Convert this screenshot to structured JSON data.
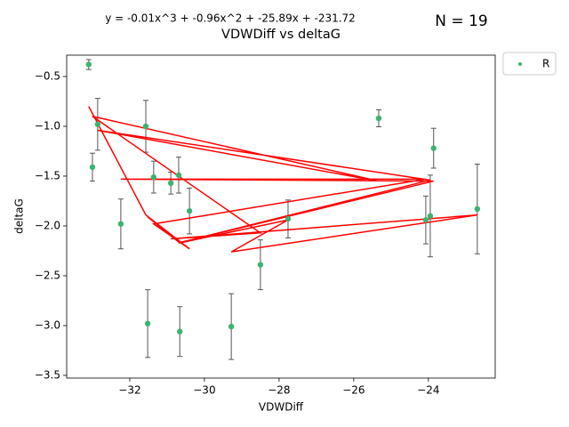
{
  "chart_data": {
    "type": "scatter",
    "title": "VDWDiff vs deltaG",
    "equation": "y = -0.01x^3 + -0.96x^2 + -25.89x + -231.72",
    "count_label": "N = 19",
    "x_label": "VDWDiff",
    "y_label": "deltaG",
    "xlim": [
      -33.69,
      -22.21
    ],
    "ylim": [
      -3.527,
      -0.286
    ],
    "xticks": [
      {
        "value": -32,
        "label": "−32"
      },
      {
        "value": -30,
        "label": "−30"
      },
      {
        "value": -28,
        "label": "−28"
      },
      {
        "value": -26,
        "label": "−26"
      },
      {
        "value": -24,
        "label": "−24"
      }
    ],
    "yticks": [
      {
        "value": -0.5,
        "label": "−0.5"
      },
      {
        "value": -1.0,
        "label": "−1.0"
      },
      {
        "value": -1.5,
        "label": "−1.5"
      },
      {
        "value": -2.0,
        "label": "−2.0"
      },
      {
        "value": -2.5,
        "label": "−2.5"
      },
      {
        "value": -3.0,
        "label": "−3.0"
      },
      {
        "value": -3.5,
        "label": "−3.5"
      }
    ],
    "grid": false,
    "legend": "outside upper right",
    "series": [
      {
        "name": "R",
        "color": "#3cb371",
        "error_color": "#555555",
        "x": [
          -33.1,
          -31.57,
          -30.4,
          -31.36,
          -24.07,
          -32.24,
          -23.86,
          -30.69,
          -23.95,
          -32.86,
          -25.33,
          -33.0,
          -28.5,
          -30.9,
          -22.69,
          -29.28,
          -27.76,
          -30.66,
          -31.52
        ],
        "values": [
          -0.38,
          -1.0,
          -1.85,
          -1.51,
          -1.94,
          -1.98,
          -1.22,
          -1.49,
          -1.9,
          -0.98,
          -0.92,
          -1.41,
          -2.39,
          -1.57,
          -1.83,
          -3.01,
          -1.93,
          -3.06,
          -2.98
        ],
        "errors": [
          0.05,
          0.26,
          0.23,
          0.16,
          0.24,
          0.25,
          0.2,
          0.18,
          0.41,
          0.26,
          0.085,
          0.14,
          0.25,
          0.11,
          0.45,
          0.33,
          0.19,
          0.25,
          0.34
        ]
      }
    ],
    "fit": {
      "color": "#ff0000",
      "x": [
        -33.1,
        -31.57,
        -30.4,
        -31.36,
        -24.07,
        -32.24,
        -23.86,
        -30.69,
        -23.95,
        -32.86,
        -25.33,
        -33.0,
        -28.5,
        -30.9,
        -22.69,
        -29.28,
        -27.76,
        -30.66,
        -31.52
      ],
      "values": [
        -0.8,
        -1.89,
        -2.23,
        -1.98,
        -1.53,
        -1.53,
        -1.55,
        -2.17,
        -1.54,
        -1.04,
        -1.55,
        -0.9,
        -2.07,
        -2.13,
        -1.89,
        -2.26,
        -1.94,
        -2.17,
        -1.91
      ]
    }
  }
}
